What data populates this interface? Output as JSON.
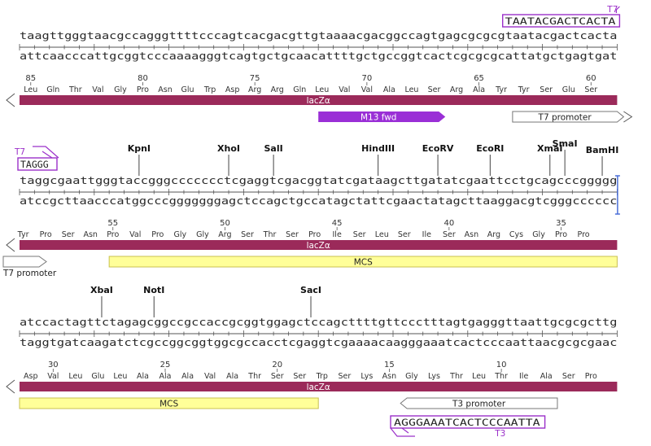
{
  "colors": {
    "lacZ": "#9b2a5a",
    "m13": "#9a2fd6",
    "mcs": "#ffff99",
    "mcs_border": "#c8c050",
    "primer": "#9b30c9",
    "cut": "#4a6fd8",
    "text": "#2a2a2a"
  },
  "rows": [
    {
      "top": "taagttgggtaacgccagggttttcccagtcacgacgttgtaaaacgacggccagtgagcgcgcgtaatacgactcacta",
      "bottom": "attcaacccattgcggtcccaaaagggtcagtgctgcaacattttgctgccggtcactcgcgcgcattatgctgagtgat",
      "aa": [
        {
          "label": "Leu",
          "pos": 1.5
        },
        {
          "label": "Gln",
          "pos": 4.5
        },
        {
          "label": "Thr",
          "pos": 7.5
        },
        {
          "label": "Val",
          "pos": 10.5
        },
        {
          "label": "Gly",
          "pos": 13.5
        },
        {
          "label": "Pro",
          "pos": 16.5
        },
        {
          "label": "Asn",
          "pos": 19.5
        },
        {
          "label": "Glu",
          "pos": 22.5
        },
        {
          "label": "Trp",
          "pos": 25.5
        },
        {
          "label": "Asp",
          "pos": 28.5
        },
        {
          "label": "Arg",
          "pos": 31.5
        },
        {
          "label": "Arg",
          "pos": 34.5
        },
        {
          "label": "Gln",
          "pos": 37.5
        },
        {
          "label": "Leu",
          "pos": 40.5
        },
        {
          "label": "Val",
          "pos": 43.5
        },
        {
          "label": "Val",
          "pos": 46.5
        },
        {
          "label": "Ala",
          "pos": 49.5
        },
        {
          "label": "Leu",
          "pos": 52.5
        },
        {
          "label": "Ser",
          "pos": 55.5
        },
        {
          "label": "Arg",
          "pos": 58.5
        },
        {
          "label": "Ala",
          "pos": 61.5
        },
        {
          "label": "Tyr",
          "pos": 64.5
        },
        {
          "label": "Tyr",
          "pos": 67.5
        },
        {
          "label": "Ser",
          "pos": 70.5
        },
        {
          "label": "Glu",
          "pos": 73.5
        },
        {
          "label": "Ser",
          "pos": 76.5
        }
      ],
      "numbers": [
        {
          "label": "85",
          "pos": 1.5
        },
        {
          "label": "80",
          "pos": 16.5
        },
        {
          "label": "75",
          "pos": 31.5
        },
        {
          "label": "70",
          "pos": 46.5
        },
        {
          "label": "65",
          "pos": 61.5
        },
        {
          "label": "60",
          "pos": 76.5
        }
      ],
      "enzymes": [],
      "features": [
        {
          "label": "lacZα",
          "start": 0,
          "end": 80,
          "type": "lacZ",
          "dir": "left",
          "lane": 0
        },
        {
          "label": "M13 fwd",
          "start": 40,
          "end": 57,
          "type": "m13",
          "dir": "right",
          "lane": 1
        },
        {
          "label": "T7 promoter",
          "start": 66,
          "end": 80,
          "type": "promoter",
          "dir": "right",
          "lane": 1
        }
      ],
      "primers": [
        {
          "name": "T7",
          "seq": "TAATACGACTCACTA",
          "start": 65,
          "end": 80,
          "where": "top",
          "hook": "right"
        }
      ]
    },
    {
      "top": "taggcgaattgggtaccgggccccccctcgaggtcgacggtatcgataagcttgatatcgaattcctgcagcccggggg",
      "bottom": "atccgcttaacccatggcccgggggggagctccagctgccatagctattcgaactatagcttaaggacgtcgggcccccc",
      "aa": [
        {
          "label": "Tyr",
          "pos": 0.5
        },
        {
          "label": "Pro",
          "pos": 3.5
        },
        {
          "label": "Ser",
          "pos": 6.5
        },
        {
          "label": "Asn",
          "pos": 9.5
        },
        {
          "label": "Pro",
          "pos": 12.5
        },
        {
          "label": "Val",
          "pos": 15.5
        },
        {
          "label": "Pro",
          "pos": 18.5
        },
        {
          "label": "Gly",
          "pos": 21.5
        },
        {
          "label": "Gly",
          "pos": 24.5
        },
        {
          "label": "Arg",
          "pos": 27.5
        },
        {
          "label": "Ser",
          "pos": 30.5
        },
        {
          "label": "Thr",
          "pos": 33.5
        },
        {
          "label": "Ser",
          "pos": 36.5
        },
        {
          "label": "Pro",
          "pos": 39.5
        },
        {
          "label": "Ile",
          "pos": 42.5
        },
        {
          "label": "Ser",
          "pos": 45.5
        },
        {
          "label": "Leu",
          "pos": 48.5
        },
        {
          "label": "Ser",
          "pos": 51.5
        },
        {
          "label": "Ile",
          "pos": 54.5
        },
        {
          "label": "Ser",
          "pos": 57.5
        },
        {
          "label": "Asn",
          "pos": 60.5
        },
        {
          "label": "Arg",
          "pos": 63.5
        },
        {
          "label": "Cys",
          "pos": 66.5
        },
        {
          "label": "Gly",
          "pos": 69.5
        },
        {
          "label": "Pro",
          "pos": 72.5
        },
        {
          "label": "Pro",
          "pos": 75.5
        }
      ],
      "numbers": [
        {
          "label": "55",
          "pos": 12.5
        },
        {
          "label": "50",
          "pos": 27.5
        },
        {
          "label": "45",
          "pos": 42.5
        },
        {
          "label": "40",
          "pos": 57.5
        },
        {
          "label": "35",
          "pos": 72.5
        }
      ],
      "enzymes": [
        {
          "name": "KpnI",
          "pos": 16
        },
        {
          "name": "XhoI",
          "pos": 28
        },
        {
          "name": "SalI",
          "pos": 34
        },
        {
          "name": "HindIII",
          "pos": 48
        },
        {
          "name": "EcoRV",
          "pos": 56
        },
        {
          "name": "EcoRI",
          "pos": 63
        },
        {
          "name": "XmaI",
          "pos": 71
        },
        {
          "name": "SmaI",
          "pos": 73
        },
        {
          "name": "BamHI",
          "pos": 78
        }
      ],
      "cutline": 80,
      "features": [
        {
          "label": "lacZα",
          "start": 0,
          "end": 80,
          "type": "lacZ",
          "dir": "left",
          "lane": 0
        },
        {
          "label": "T7 promoter",
          "start": 0,
          "end": 4,
          "type": "promoter",
          "dir": "right",
          "lane": 1,
          "labelBelow": true
        },
        {
          "label": "MCS",
          "start": 12,
          "end": 80,
          "type": "mcs",
          "dir": "none",
          "lane": 1
        }
      ],
      "primers": [
        {
          "name": "T7",
          "seq": "TAGGG",
          "start": 0,
          "end": 5,
          "where": "top",
          "hook": "left"
        }
      ]
    },
    {
      "top": "atccactagttctagagcggccgccaccgcggtggagctccagcttttgttccctttagtgagggttaattgcgcgcttg",
      "bottom": "taggtgatcaagatctcgccggcggtggcgccacctcgaggtcgaaaacaagggaaatcactcccaattaacgcgcgaac",
      "aa": [
        {
          "label": "Asp",
          "pos": 1.5
        },
        {
          "label": "Val",
          "pos": 4.5
        },
        {
          "label": "Leu",
          "pos": 7.5
        },
        {
          "label": "Glu",
          "pos": 10.5
        },
        {
          "label": "Leu",
          "pos": 13.5
        },
        {
          "label": "Ala",
          "pos": 16.5
        },
        {
          "label": "Ala",
          "pos": 19.5
        },
        {
          "label": "Ala",
          "pos": 22.5
        },
        {
          "label": "Val",
          "pos": 25.5
        },
        {
          "label": "Ala",
          "pos": 28.5
        },
        {
          "label": "Thr",
          "pos": 31.5
        },
        {
          "label": "Ser",
          "pos": 34.5
        },
        {
          "label": "Ser",
          "pos": 37.5
        },
        {
          "label": "Trp",
          "pos": 40.5
        },
        {
          "label": "Ser",
          "pos": 43.5
        },
        {
          "label": "Lys",
          "pos": 46.5
        },
        {
          "label": "Asn",
          "pos": 49.5
        },
        {
          "label": "Gly",
          "pos": 52.5
        },
        {
          "label": "Lys",
          "pos": 55.5
        },
        {
          "label": "Thr",
          "pos": 58.5
        },
        {
          "label": "Leu",
          "pos": 61.5
        },
        {
          "label": "Thr",
          "pos": 64.5
        },
        {
          "label": "Ile",
          "pos": 67.5
        },
        {
          "label": "Ala",
          "pos": 70.5
        },
        {
          "label": "Ser",
          "pos": 73.5
        },
        {
          "label": "Pro",
          "pos": 76.5
        }
      ],
      "numbers": [
        {
          "label": "30",
          "pos": 4.5
        },
        {
          "label": "25",
          "pos": 19.5
        },
        {
          "label": "20",
          "pos": 34.5
        },
        {
          "label": "15",
          "pos": 49.5
        },
        {
          "label": "10",
          "pos": 64.5
        }
      ],
      "enzymes": [
        {
          "name": "XbaI",
          "pos": 11
        },
        {
          "name": "NotI",
          "pos": 18
        },
        {
          "name": "SacI",
          "pos": 39
        }
      ],
      "features": [
        {
          "label": "lacZα",
          "start": 0,
          "end": 80,
          "type": "lacZ",
          "dir": "left",
          "lane": 0
        },
        {
          "label": "MCS",
          "start": 0,
          "end": 40,
          "type": "mcs",
          "dir": "none",
          "lane": 1
        },
        {
          "label": "T3 promoter",
          "start": 51,
          "end": 72,
          "type": "promoter",
          "dir": "left",
          "lane": 1
        }
      ],
      "primers": [
        {
          "name": "T3",
          "seq": "AGGGAAATCACTCCCAATTA",
          "start": 50,
          "end": 70,
          "where": "bottom",
          "hook": "left"
        }
      ]
    }
  ]
}
